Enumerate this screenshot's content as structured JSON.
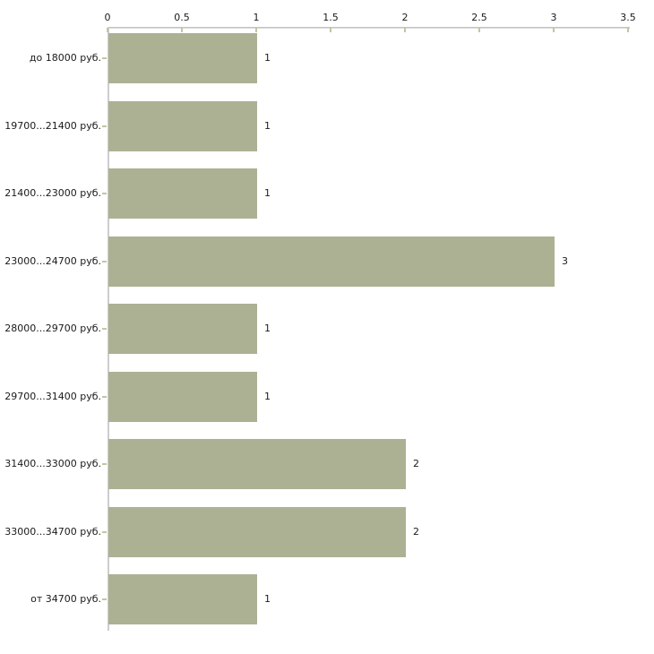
{
  "chart_data": {
    "type": "bar",
    "orientation": "horizontal",
    "title": "",
    "xlabel": "",
    "ylabel": "",
    "grid": false,
    "legend": false,
    "categories": [
      "до 18000 руб.",
      "19700...21400 руб.",
      "21400...23000 руб.",
      "23000...24700 руб.",
      "28000...29700 руб.",
      "29700...31400 руб.",
      "31400...33000 руб.",
      "33000...34700 руб.",
      "от 34700 руб."
    ],
    "values": [
      1,
      1,
      1,
      3,
      1,
      1,
      2,
      2,
      1
    ],
    "value_labels": [
      "1",
      "1",
      "1",
      "3",
      "1",
      "1",
      "2",
      "2",
      "1"
    ],
    "x_axis": {
      "position": "top",
      "min": 0,
      "max": 3.5,
      "tick_step": 0.5,
      "tick_labels": [
        "0",
        "0.5",
        "1",
        "1.5",
        "2",
        "2.5",
        "3",
        "3.5"
      ]
    },
    "colors": {
      "bar": "#acb194",
      "axis_vertical": "#cdcdcd",
      "tick": "#c3c5a2",
      "text": "#1a1a1a",
      "background": "#ffffff"
    }
  }
}
